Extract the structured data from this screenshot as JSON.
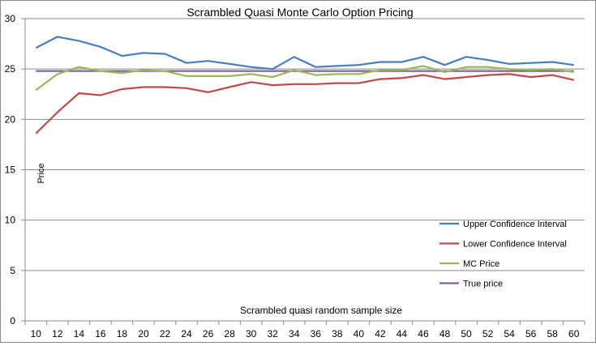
{
  "chart_data": {
    "type": "line",
    "title": "Scrambled Quasi Monte Carlo Option Pricing",
    "xlabel": "Scrambled quasi random sample size",
    "ylabel": "Price",
    "ylim": [
      0,
      30
    ],
    "yticks": [
      0,
      5,
      10,
      15,
      20,
      25,
      30
    ],
    "grid": true,
    "legend_position": "right",
    "categories": [
      10,
      12,
      14,
      16,
      18,
      20,
      22,
      24,
      26,
      28,
      30,
      32,
      34,
      36,
      38,
      40,
      42,
      44,
      46,
      48,
      50,
      52,
      54,
      56,
      58,
      60
    ],
    "series": [
      {
        "name": "Upper Confidence Interval",
        "color": "#4a7ebb",
        "values": [
          27.1,
          28.2,
          27.8,
          27.2,
          26.3,
          26.6,
          26.5,
          25.6,
          25.8,
          25.5,
          25.2,
          25.0,
          26.2,
          25.2,
          25.3,
          25.4,
          25.7,
          25.7,
          26.2,
          25.4,
          26.2,
          25.9,
          25.5,
          25.6,
          25.7,
          25.4
        ]
      },
      {
        "name": "Lower Confidence Interval",
        "color": "#be4b48",
        "values": [
          18.6,
          20.7,
          22.6,
          22.4,
          23.0,
          23.2,
          23.2,
          23.1,
          22.7,
          23.2,
          23.7,
          23.4,
          23.5,
          23.5,
          23.6,
          23.6,
          24.0,
          24.1,
          24.4,
          24.0,
          24.2,
          24.4,
          24.5,
          24.2,
          24.4,
          23.9
        ]
      },
      {
        "name": "MC Price",
        "color": "#98b954",
        "values": [
          22.9,
          24.5,
          25.2,
          24.8,
          24.6,
          24.9,
          24.8,
          24.3,
          24.3,
          24.3,
          24.5,
          24.2,
          24.9,
          24.4,
          24.5,
          24.5,
          24.9,
          24.9,
          25.3,
          24.7,
          25.2,
          25.2,
          25.0,
          24.9,
          25.0,
          24.7
        ]
      },
      {
        "name": "True price",
        "color": "#7d5fa0",
        "values": [
          24.8,
          24.8,
          24.8,
          24.8,
          24.8,
          24.8,
          24.8,
          24.8,
          24.8,
          24.8,
          24.8,
          24.8,
          24.8,
          24.8,
          24.8,
          24.8,
          24.8,
          24.8,
          24.8,
          24.8,
          24.8,
          24.8,
          24.8,
          24.8,
          24.8,
          24.8
        ]
      }
    ]
  }
}
